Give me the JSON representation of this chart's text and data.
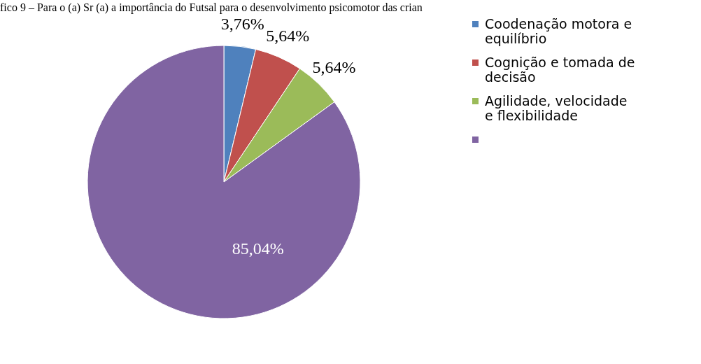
{
  "chart_data": {
    "type": "pie",
    "title": "fico 9 – Para o (a) Sr (a) a importância do Futsal para o desenvolvimento psicomotor das crian",
    "categories": [
      "Coodenação motora e equilíbrio",
      "Cognição e tomada de decisão",
      "Agilidade, velocidade e flexibilidade",
      null
    ],
    "values": [
      3.76,
      5.64,
      5.64,
      85.04
    ],
    "colors": [
      "#4f81bd",
      "#c0504d",
      "#9bbb59",
      "#8064a2"
    ],
    "value_labels": [
      "3,76%",
      "5,64%",
      "5,64%",
      "85,04%"
    ],
    "legend": "right"
  }
}
